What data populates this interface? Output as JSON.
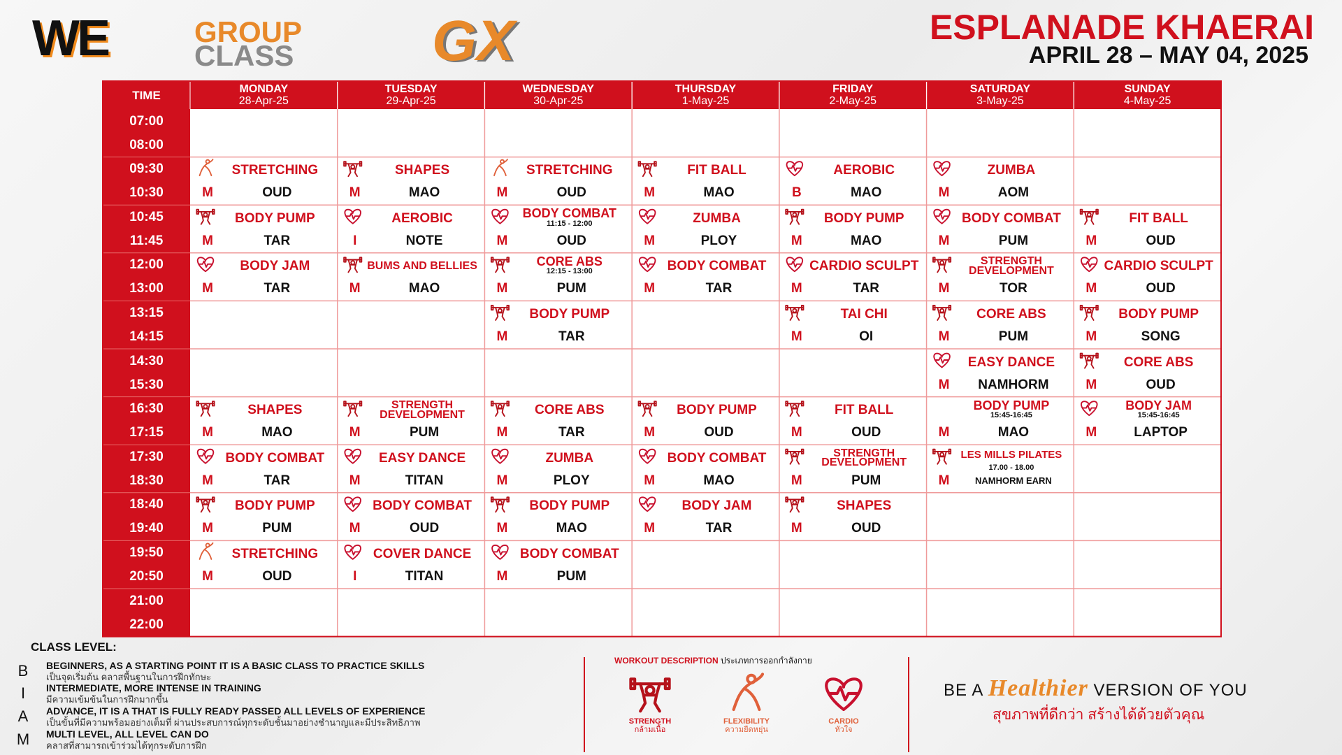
{
  "header": {
    "logo_we": "WE",
    "logo_group": "GROUP",
    "logo_class": "CLASS",
    "logo_gx": "GX",
    "location": "ESPLANADE KHAERAI",
    "date_range": "APRIL 28 – MAY 04, 2025"
  },
  "table": {
    "time_header": "TIME",
    "days": [
      {
        "day": "MONDAY",
        "date": "28-Apr-25"
      },
      {
        "day": "TUESDAY",
        "date": "29-Apr-25"
      },
      {
        "day": "WEDNESDAY",
        "date": "30-Apr-25"
      },
      {
        "day": "THURSDAY",
        "date": "1-May-25"
      },
      {
        "day": "FRIDAY",
        "date": "2-May-25"
      },
      {
        "day": "SATURDAY",
        "date": "3-May-25"
      },
      {
        "day": "SUNDAY",
        "date": "4-May-25"
      }
    ],
    "rows": [
      {
        "start": "07:00",
        "end": "08:00",
        "cells": [
          null,
          null,
          null,
          null,
          null,
          null,
          null
        ]
      },
      {
        "start": "09:30",
        "end": "10:30",
        "cells": [
          {
            "name": "STRETCHING",
            "level": "M",
            "instructor": "OUD",
            "icon": "flexibility"
          },
          {
            "name": "SHAPES",
            "level": "M",
            "instructor": "MAO",
            "icon": "strength"
          },
          {
            "name": "STRETCHING",
            "level": "M",
            "instructor": "OUD",
            "icon": "flexibility"
          },
          {
            "name": "FIT BALL",
            "level": "M",
            "instructor": "MAO",
            "icon": "strength"
          },
          {
            "name": "AEROBIC",
            "level": "B",
            "instructor": "MAO",
            "icon": "cardio"
          },
          {
            "name": "ZUMBA",
            "level": "M",
            "instructor": "AOM",
            "icon": "cardio"
          },
          null
        ]
      },
      {
        "start": "10:45",
        "end": "11:45",
        "cells": [
          {
            "name": "BODY PUMP",
            "level": "M",
            "instructor": "TAR",
            "icon": "strength"
          },
          {
            "name": "AEROBIC",
            "level": "I",
            "instructor": "NOTE",
            "icon": "cardio"
          },
          {
            "name": "BODY COMBAT",
            "time": "11:15 - 12:00",
            "level": "M",
            "instructor": "OUD",
            "icon": "cardio"
          },
          {
            "name": "ZUMBA",
            "level": "M",
            "instructor": "PLOY",
            "icon": "cardio"
          },
          {
            "name": "BODY PUMP",
            "level": "M",
            "instructor": "MAO",
            "icon": "strength"
          },
          {
            "name": "BODY COMBAT",
            "level": "M",
            "instructor": "PUM",
            "icon": "cardio"
          },
          {
            "name": "FIT BALL",
            "level": "M",
            "instructor": "OUD",
            "icon": "strength"
          }
        ]
      },
      {
        "start": "12:00",
        "end": "13:00",
        "cells": [
          {
            "name": "BODY JAM",
            "level": "M",
            "instructor": "TAR",
            "icon": "cardio"
          },
          {
            "name": "BUMS AND BELLIES",
            "level": "M",
            "instructor": "MAO",
            "icon": "strength"
          },
          {
            "name": "CORE ABS",
            "time": "12:15 - 13:00",
            "level": "M",
            "instructor": "PUM",
            "icon": "strength"
          },
          {
            "name": "BODY COMBAT",
            "level": "M",
            "instructor": "TAR",
            "icon": "cardio"
          },
          {
            "name": "CARDIO SCULPT",
            "level": "M",
            "instructor": "TAR",
            "icon": "cardio"
          },
          {
            "name": "STRENGTH DEVELOPMENT",
            "level": "M",
            "instructor": "TOR",
            "icon": "strength"
          },
          {
            "name": "CARDIO SCULPT",
            "level": "M",
            "instructor": "OUD",
            "icon": "cardio"
          }
        ]
      },
      {
        "start": "13:15",
        "end": "14:15",
        "cells": [
          null,
          null,
          {
            "name": "BODY PUMP",
            "level": "M",
            "instructor": "TAR",
            "icon": "strength"
          },
          null,
          {
            "name": "TAI CHI",
            "level": "M",
            "instructor": "OI",
            "icon": "strength"
          },
          {
            "name": "CORE ABS",
            "level": "M",
            "instructor": "PUM",
            "icon": "strength"
          },
          {
            "name": "BODY PUMP",
            "level": "M",
            "instructor": "SONG",
            "icon": "strength"
          }
        ]
      },
      {
        "start": "14:30",
        "end": "15:30",
        "cells": [
          null,
          null,
          null,
          null,
          null,
          {
            "name": "EASY DANCE",
            "level": "M",
            "instructor": "NAMHORM",
            "icon": "cardio"
          },
          {
            "name": "CORE ABS",
            "level": "M",
            "instructor": "OUD",
            "icon": "strength"
          }
        ]
      },
      {
        "start": "16:30",
        "end": "17:15",
        "cells": [
          {
            "name": "SHAPES",
            "level": "M",
            "instructor": "MAO",
            "icon": "strength"
          },
          {
            "name": "STRENGTH DEVELOPMENT",
            "level": "M",
            "instructor": "PUM",
            "icon": "strength"
          },
          {
            "name": "CORE ABS",
            "level": "M",
            "instructor": "TAR",
            "icon": "strength"
          },
          {
            "name": "BODY PUMP",
            "level": "M",
            "instructor": "OUD",
            "icon": "strength"
          },
          {
            "name": "FIT BALL",
            "level": "M",
            "instructor": "OUD",
            "icon": "strength"
          },
          {
            "name": "BODY PUMP",
            "time": "15:45-16:45",
            "level": "M",
            "instructor": "MAO"
          },
          {
            "name": "BODY JAM",
            "time": "15:45-16:45",
            "level": "M",
            "instructor": "LAPTOP",
            "icon": "cardio"
          }
        ]
      },
      {
        "start": "17:30",
        "end": "18:30",
        "cells": [
          {
            "name": "BODY COMBAT",
            "level": "M",
            "instructor": "TAR",
            "icon": "cardio"
          },
          {
            "name": "EASY DANCE",
            "level": "M",
            "instructor": "TITAN",
            "icon": "cardio"
          },
          {
            "name": "ZUMBA",
            "level": "M",
            "instructor": "PLOY",
            "icon": "cardio"
          },
          {
            "name": "BODY COMBAT",
            "level": "M",
            "instructor": "MAO",
            "icon": "cardio"
          },
          {
            "name": "STRENGTH DEVELOPMENT",
            "level": "M",
            "instructor": "PUM",
            "icon": "strength"
          },
          {
            "name": "LES MILLS PILATES",
            "time": "17.00 - 18.00",
            "level": "M",
            "instructor": "NAMHORM EARN",
            "icon": "strength"
          },
          null
        ]
      },
      {
        "start": "18:40",
        "end": "19:40",
        "cells": [
          {
            "name": "BODY PUMP",
            "level": "M",
            "instructor": "PUM",
            "icon": "strength"
          },
          {
            "name": "BODY COMBAT",
            "level": "M",
            "instructor": "OUD",
            "icon": "cardio"
          },
          {
            "name": "BODY PUMP",
            "level": "M",
            "instructor": "MAO",
            "icon": "strength"
          },
          {
            "name": "BODY JAM",
            "level": "M",
            "instructor": "TAR",
            "icon": "cardio"
          },
          {
            "name": "SHAPES",
            "level": "M",
            "instructor": "OUD",
            "icon": "strength"
          },
          null,
          null
        ]
      },
      {
        "start": "19:50",
        "end": "20:50",
        "cells": [
          {
            "name": "STRETCHING",
            "level": "M",
            "instructor": "OUD",
            "icon": "flexibility"
          },
          {
            "name": "COVER DANCE",
            "level": "I",
            "instructor": "TITAN",
            "icon": "cardio"
          },
          {
            "name": "BODY COMBAT",
            "level": "M",
            "instructor": "PUM",
            "icon": "cardio"
          },
          null,
          null,
          null,
          null
        ]
      },
      {
        "start": "21:00",
        "end": "22:00",
        "cells": [
          null,
          null,
          null,
          null,
          null,
          null,
          null
        ]
      }
    ]
  },
  "class_level": {
    "title": "CLASS LEVEL:",
    "levels": [
      {
        "code": "B",
        "name": "BEGINNERS, AS A STARTING POINT IT IS A BASIC CLASS TO PRACTICE SKILLS",
        "thai": "เป็นจุดเริ่มต้น คลาสพื้นฐานในการฝึกทักษะ"
      },
      {
        "code": "I",
        "name": "INTERMEDIATE, MORE INTENSE IN TRAINING",
        "thai": "มีความเข้มข้นในการฝึกมากขึ้น"
      },
      {
        "code": "A",
        "name": "ADVANCE, IT IS A THAT IS FULLY READY PASSED ALL LEVELS OF EXPERIENCE",
        "thai": "เป็นขั้นที่มีความพร้อมอย่างเต็มที่ ผ่านประสบการณ์ทุกระดับชั้นมาอย่างชำนาญและมีประสิทธิภาพ"
      },
      {
        "code": "M",
        "name": "MULTI LEVEL, ALL LEVEL CAN DO",
        "thai": "คลาสที่สามารถเข้าร่วมได้ทุกระดับการฝึก"
      }
    ]
  },
  "workout_description": {
    "title": "WORKOUT DESCRIPTION",
    "title_thai": "ประเภทการออกกำลังกาย",
    "types": [
      {
        "icon": "strength",
        "name": "STRENGTH",
        "thai": "กล้ามเนื้อ"
      },
      {
        "icon": "flexibility",
        "name": "FLEXIBILITY",
        "thai": "ความยืดหยุ่น"
      },
      {
        "icon": "cardio",
        "name": "CARDIO",
        "thai": "หัวใจ"
      }
    ]
  },
  "slogan": {
    "prefix": "BE A",
    "highlight": "Healthier",
    "suffix": "VERSION OF YOU",
    "thai": "สุขภาพที่ดีกว่า สร้างได้ด้วยตัวคุณ"
  }
}
